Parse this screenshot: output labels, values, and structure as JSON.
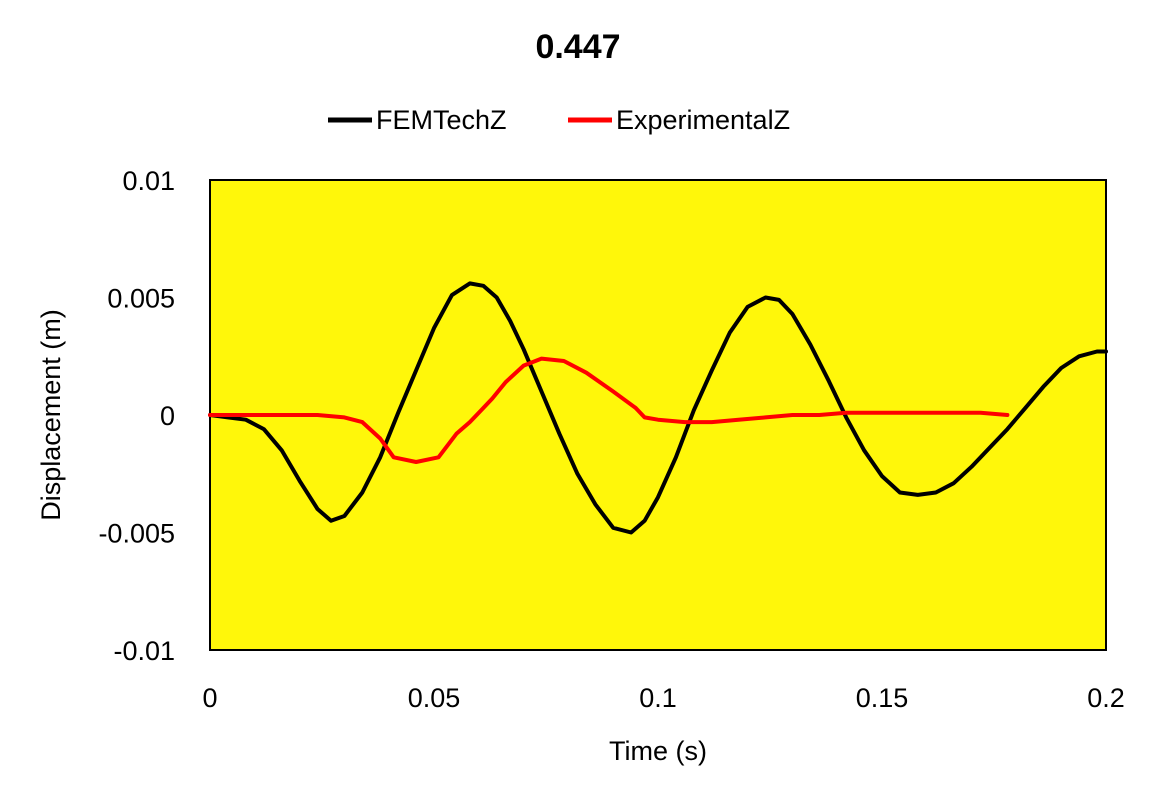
{
  "chart_data": {
    "type": "line",
    "title": "0.447",
    "xlabel": "Time (s)",
    "ylabel": "Displacement (m)",
    "xlim": [
      0,
      0.2
    ],
    "ylim": [
      -0.01,
      0.01
    ],
    "x_ticks": [
      0,
      0.05,
      0.1,
      0.15,
      0.2
    ],
    "y_ticks": [
      0.01,
      0.005,
      0,
      -0.005,
      -0.01
    ],
    "x_tick_labels": [
      "0",
      "0.05",
      "0.1",
      "0.15",
      "0.2"
    ],
    "y_tick_labels": [
      "0.01",
      "0.005",
      "0",
      "-0.005",
      "-0.01"
    ],
    "grid": false,
    "legend_position": "top",
    "plot_background": "#FFF70A",
    "series": [
      {
        "name": "FEMTechZ",
        "color": "#000000",
        "x": [
          0,
          0.004,
          0.008,
          0.012,
          0.016,
          0.02,
          0.024,
          0.027,
          0.03,
          0.034,
          0.038,
          0.042,
          0.046,
          0.05,
          0.054,
          0.058,
          0.061,
          0.064,
          0.067,
          0.07,
          0.074,
          0.078,
          0.082,
          0.086,
          0.09,
          0.094,
          0.097,
          0.1,
          0.104,
          0.108,
          0.112,
          0.116,
          0.12,
          0.124,
          0.127,
          0.13,
          0.134,
          0.138,
          0.142,
          0.146,
          0.15,
          0.154,
          0.158,
          0.162,
          0.166,
          0.17,
          0.174,
          0.178,
          0.182,
          0.186,
          0.19,
          0.194,
          0.198,
          0.2
        ],
        "y": [
          0,
          -0.0001,
          -0.0002,
          -0.0006,
          -0.0015,
          -0.0028,
          -0.004,
          -0.0045,
          -0.0043,
          -0.0033,
          -0.0018,
          0.0001,
          0.0019,
          0.0037,
          0.0051,
          0.0056,
          0.0055,
          0.005,
          0.004,
          0.0028,
          0.001,
          -0.0008,
          -0.0025,
          -0.0038,
          -0.0048,
          -0.005,
          -0.0045,
          -0.0035,
          -0.0018,
          0.0002,
          0.0019,
          0.0035,
          0.0046,
          0.005,
          0.0049,
          0.0043,
          0.003,
          0.0015,
          -0.0001,
          -0.0015,
          -0.0026,
          -0.0033,
          -0.0034,
          -0.0033,
          -0.0029,
          -0.0022,
          -0.0014,
          -0.0006,
          0.0003,
          0.0012,
          0.002,
          0.0025,
          0.0027,
          0.0027
        ]
      },
      {
        "name": "ExperimentalZ",
        "color": "#FF0000",
        "x": [
          0,
          0.008,
          0.016,
          0.024,
          0.03,
          0.034,
          0.038,
          0.041,
          0.046,
          0.051,
          0.055,
          0.058,
          0.06,
          0.063,
          0.066,
          0.07,
          0.074,
          0.079,
          0.084,
          0.09,
          0.095,
          0.097,
          0.1,
          0.106,
          0.112,
          0.118,
          0.124,
          0.13,
          0.136,
          0.142,
          0.148,
          0.154,
          0.16,
          0.166,
          0.172,
          0.178
        ],
        "y": [
          0,
          0,
          0,
          0,
          -0.0001,
          -0.0003,
          -0.001,
          -0.0018,
          -0.002,
          -0.0018,
          -0.0008,
          -0.0003,
          0.0001,
          0.0007,
          0.0014,
          0.0021,
          0.0024,
          0.0023,
          0.0018,
          0.001,
          0.0003,
          -0.0001,
          -0.0002,
          -0.0003,
          -0.0003,
          -0.0002,
          -0.0001,
          0,
          0,
          0.0001,
          0.0001,
          0.0001,
          0.0001,
          0.0001,
          0.0001,
          0
        ]
      }
    ]
  }
}
